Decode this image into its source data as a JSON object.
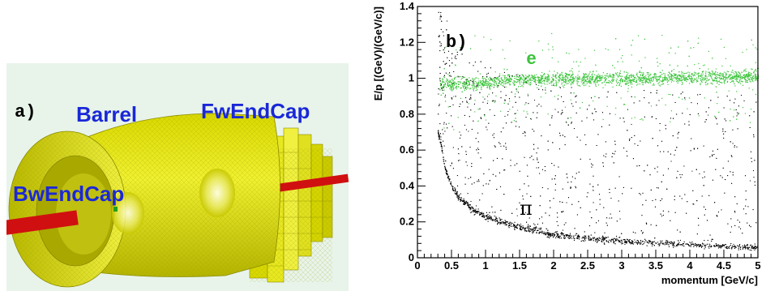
{
  "panel_a": {
    "letter": "a)",
    "labels": {
      "barrel": "Barrel",
      "fw_endcap": "FwEndCap",
      "bw_endcap": "BwEndCap"
    },
    "colors": {
      "detector": "#e6e600",
      "beampipe": "#d01010",
      "background": "#e8f4ea",
      "label": "#1a28d8"
    }
  },
  "panel_b": {
    "letter": "b)",
    "annotations": {
      "electron": "e",
      "pion": "π"
    },
    "colors": {
      "electron": "#3cc43c",
      "pion": "#000000"
    }
  },
  "chart_data": {
    "type": "scatter",
    "title": "",
    "xlabel": "momentum [GeV/c]",
    "ylabel": "E/p [(GeV)/(GeV/c)]",
    "xlim": [
      0,
      5
    ],
    "ylim": [
      0,
      1.4
    ],
    "x_ticks": [
      "0",
      "0.5",
      "1",
      "1.5",
      "2",
      "2.5",
      "3",
      "3.5",
      "4",
      "4.5",
      "5"
    ],
    "y_ticks": [
      "0",
      "0.2",
      "0.4",
      "0.6",
      "0.8",
      "1",
      "1.2",
      "1.4"
    ],
    "grid": false,
    "series": [
      {
        "name": "e",
        "description_band": "electrons, E/p ≈ 1",
        "x": [
          0.35,
          0.5,
          1.0,
          1.5,
          2.0,
          2.5,
          3.0,
          3.5,
          4.0,
          4.5,
          5.0
        ],
        "y": [
          0.97,
          0.97,
          0.98,
          0.99,
          1.0,
          1.0,
          1.0,
          1.0,
          1.01,
          1.01,
          1.01
        ]
      },
      {
        "name": "π",
        "x": [
          0.3,
          0.35,
          0.4,
          0.5,
          0.6,
          0.8,
          1.0,
          1.5,
          2.0,
          2.5,
          3.0,
          3.5,
          4.0,
          4.5,
          5.0
        ],
        "y": [
          0.7,
          0.62,
          0.5,
          0.4,
          0.34,
          0.27,
          0.23,
          0.17,
          0.13,
          0.11,
          0.095,
          0.085,
          0.075,
          0.065,
          0.06
        ]
      }
    ]
  }
}
